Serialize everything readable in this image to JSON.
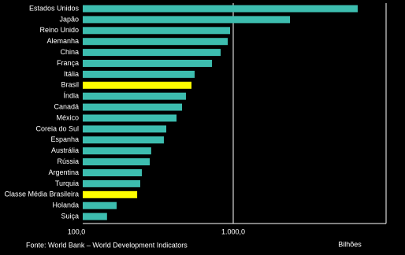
{
  "chart_data": {
    "type": "bar",
    "orientation": "horizontal",
    "categories": [
      "Estados Unidos",
      "Japão",
      "Reino Unido",
      "Alemanha",
      "China",
      "França",
      "Itália",
      "Brasil",
      "Índia",
      "Canadá",
      "México",
      "Coreia do Sul",
      "Espanha",
      "Austrália",
      "Rússia",
      "Argentina",
      "Turquia",
      "Classe Média Brasileira",
      "Holanda",
      "Suiça"
    ],
    "values": [
      6715,
      2383,
      953,
      919,
      825,
      722,
      554,
      528,
      485,
      457,
      420,
      359,
      346,
      285,
      279,
      247,
      241,
      230,
      168,
      145
    ],
    "colors": [
      "#3dbdaf",
      "#3dbdaf",
      "#3dbdaf",
      "#3dbdaf",
      "#3dbdaf",
      "#3dbdaf",
      "#3dbdaf",
      "#ffff00",
      "#3dbdaf",
      "#3dbdaf",
      "#3dbdaf",
      "#3dbdaf",
      "#3dbdaf",
      "#3dbdaf",
      "#3dbdaf",
      "#3dbdaf",
      "#3dbdaf",
      "#ffff00",
      "#3dbdaf",
      "#3dbdaf"
    ],
    "xscale": "log",
    "xlim": [
      100,
      10000
    ],
    "xticks": [
      {
        "value": 100,
        "label": "100,0"
      },
      {
        "value": 1000,
        "label": "1.000,0"
      }
    ],
    "grid": true,
    "xlabel": "Bilhões",
    "source": "Fonte: World Bank – World Development Indicators"
  }
}
